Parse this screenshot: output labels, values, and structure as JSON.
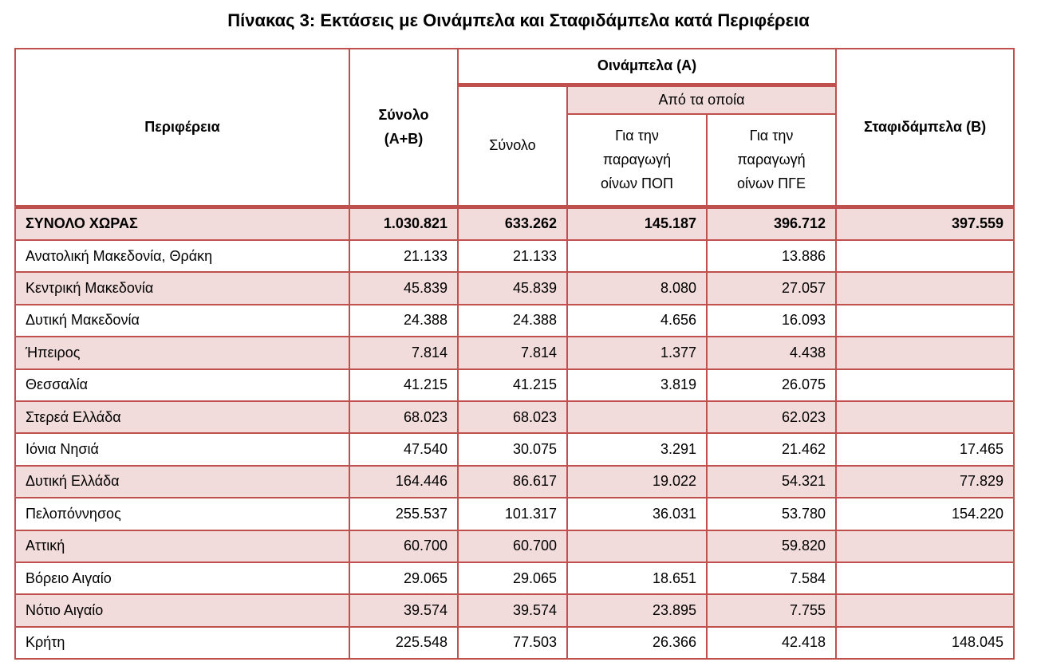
{
  "title": "Πίνακας 3: Εκτάσεις με Οινάμπελα και Σταφιδάμπελα κατά Περιφέρεια",
  "table": {
    "header": {
      "region": "Περιφέρεια",
      "total": "Σύνολο (Α+Β)",
      "wine": "Οινάμπελα (Α)",
      "wine_total": "Σύνολο",
      "of_which": "Από τα οποία",
      "pdo": "Για την παραγωγή οίνων ΠΟΠ",
      "pgi": "Για την παραγωγή οίνων ΠΓΕ",
      "raisin": "Σταφιδάμπελα (Β)"
    },
    "rows": [
      [
        "ΣΥΝΟΛΟ ΧΩΡΑΣ",
        "1.030.821",
        "633.262",
        "145.187",
        "396.712",
        "397.559"
      ],
      [
        "Ανατολική Μακεδονία, Θράκη",
        "21.133",
        "21.133",
        null,
        "13.886",
        null
      ],
      [
        "Κεντρική Μακεδονία",
        "45.839",
        "45.839",
        "8.080",
        "27.057",
        null
      ],
      [
        "Δυτική Μακεδονία",
        "24.388",
        "24.388",
        "4.656",
        "16.093",
        null
      ],
      [
        "Ήπειρος",
        "7.814",
        "7.814",
        "1.377",
        "4.438",
        null
      ],
      [
        "Θεσσαλία",
        "41.215",
        "41.215",
        "3.819",
        "26.075",
        null
      ],
      [
        "Στερεά Ελλάδα",
        "68.023",
        "68.023",
        null,
        "62.023",
        null
      ],
      [
        "Ιόνια Νησιά",
        "47.540",
        "30.075",
        "3.291",
        "21.462",
        "17.465"
      ],
      [
        "Δυτική Ελλάδα",
        "164.446",
        "86.617",
        "19.022",
        "54.321",
        "77.829"
      ],
      [
        "Πελοπόννησος",
        "255.537",
        "101.317",
        "36.031",
        "53.780",
        "154.220"
      ],
      [
        "Αττική",
        "60.700",
        "60.700",
        null,
        "59.820",
        null
      ],
      [
        "Βόρειο Αιγαίο",
        "29.065",
        "29.065",
        "18.651",
        "7.584",
        null
      ],
      [
        "Νότιο Αιγαίο",
        "39.574",
        "39.574",
        "23.895",
        "7.755",
        null
      ],
      [
        "Κρήτη",
        "225.548",
        "77.503",
        "26.366",
        "42.418",
        "148.045"
      ]
    ]
  }
}
